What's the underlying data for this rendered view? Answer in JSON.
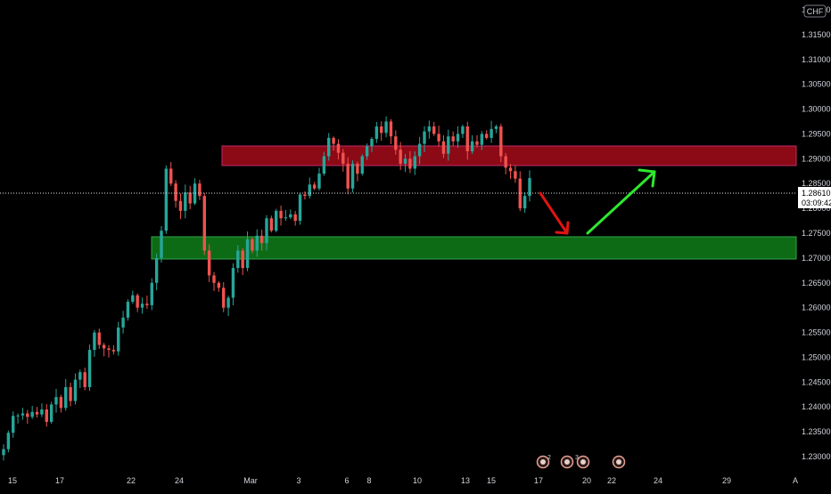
{
  "symbol_currency": "CHF",
  "colors": {
    "background": "#000000",
    "up": "#26a69a",
    "down": "#ef5350",
    "resistance_zone": "#8b0a16",
    "support_zone": "#0d6b16",
    "arrow_down": "#e01414",
    "arrow_up": "#2ee82e",
    "axis_text": "#d1d4dc"
  },
  "price_axis": {
    "ticks": [
      "1.32000",
      "1.31500",
      "1.31000",
      "1.30500",
      "1.30000",
      "1.29500",
      "1.29000",
      "1.28500",
      "1.28000",
      "1.27500",
      "1.27000",
      "1.26500",
      "1.26000",
      "1.25500",
      "1.25000",
      "1.24500",
      "1.24000",
      "1.23500",
      "1.23000"
    ]
  },
  "time_axis": {
    "ticks": [
      "15",
      "17",
      "22",
      "24",
      "Mar",
      "3",
      "6",
      "8",
      "10",
      "13",
      "15",
      "17",
      "20",
      "22",
      "24",
      "29",
      "A"
    ]
  },
  "last_price": {
    "value": "1.28610",
    "countdown": "03:09:42"
  },
  "event_badges": [
    "2",
    "",
    "3",
    "",
    ""
  ],
  "chart_data": {
    "type": "candlestick",
    "title": "",
    "ylim": [
      1.229,
      1.3235
    ],
    "grid": false,
    "start_close": 1.2315,
    "closes": [
      1.2315,
      1.2348,
      1.2382,
      1.2383,
      1.2387,
      1.238,
      1.239,
      1.2385,
      1.2395,
      1.237,
      1.2405,
      1.242,
      1.2398,
      1.244,
      1.2412,
      1.2455,
      1.247,
      1.244,
      1.2515,
      1.255,
      1.2525,
      1.2518,
      1.2515,
      1.2512,
      1.256,
      1.258,
      1.2612,
      1.2625,
      1.26,
      1.2608,
      1.2605,
      1.265,
      1.27,
      1.2755,
      1.288,
      1.285,
      1.2815,
      1.2795,
      1.2832,
      1.281,
      1.285,
      1.2825,
      1.2715,
      1.2665,
      1.265,
      1.264,
      1.26,
      1.262,
      1.268,
      1.2715,
      1.268,
      1.2738,
      1.2715,
      1.2745,
      1.273,
      1.278,
      1.2755,
      1.2795,
      1.278,
      1.2782,
      1.2788,
      1.2775,
      1.2828,
      1.2825,
      1.2848,
      1.284,
      1.287,
      1.2905,
      1.2942,
      1.293,
      1.2912,
      1.289,
      1.284,
      1.289,
      1.287,
      1.2905,
      1.2925,
      1.294,
      1.2965,
      1.2952,
      1.2975,
      1.2945,
      1.2918,
      1.289,
      1.29,
      1.288,
      1.2905,
      1.293,
      1.2955,
      1.2965,
      1.295,
      1.2935,
      1.291,
      1.2945,
      1.2935,
      1.295,
      1.2965,
      1.2915,
      1.2935,
      1.2928,
      1.295,
      1.2942,
      1.296,
      1.2965,
      1.2905,
      1.2882,
      1.2875,
      1.286,
      1.28,
      1.2825,
      1.2861
    ]
  }
}
